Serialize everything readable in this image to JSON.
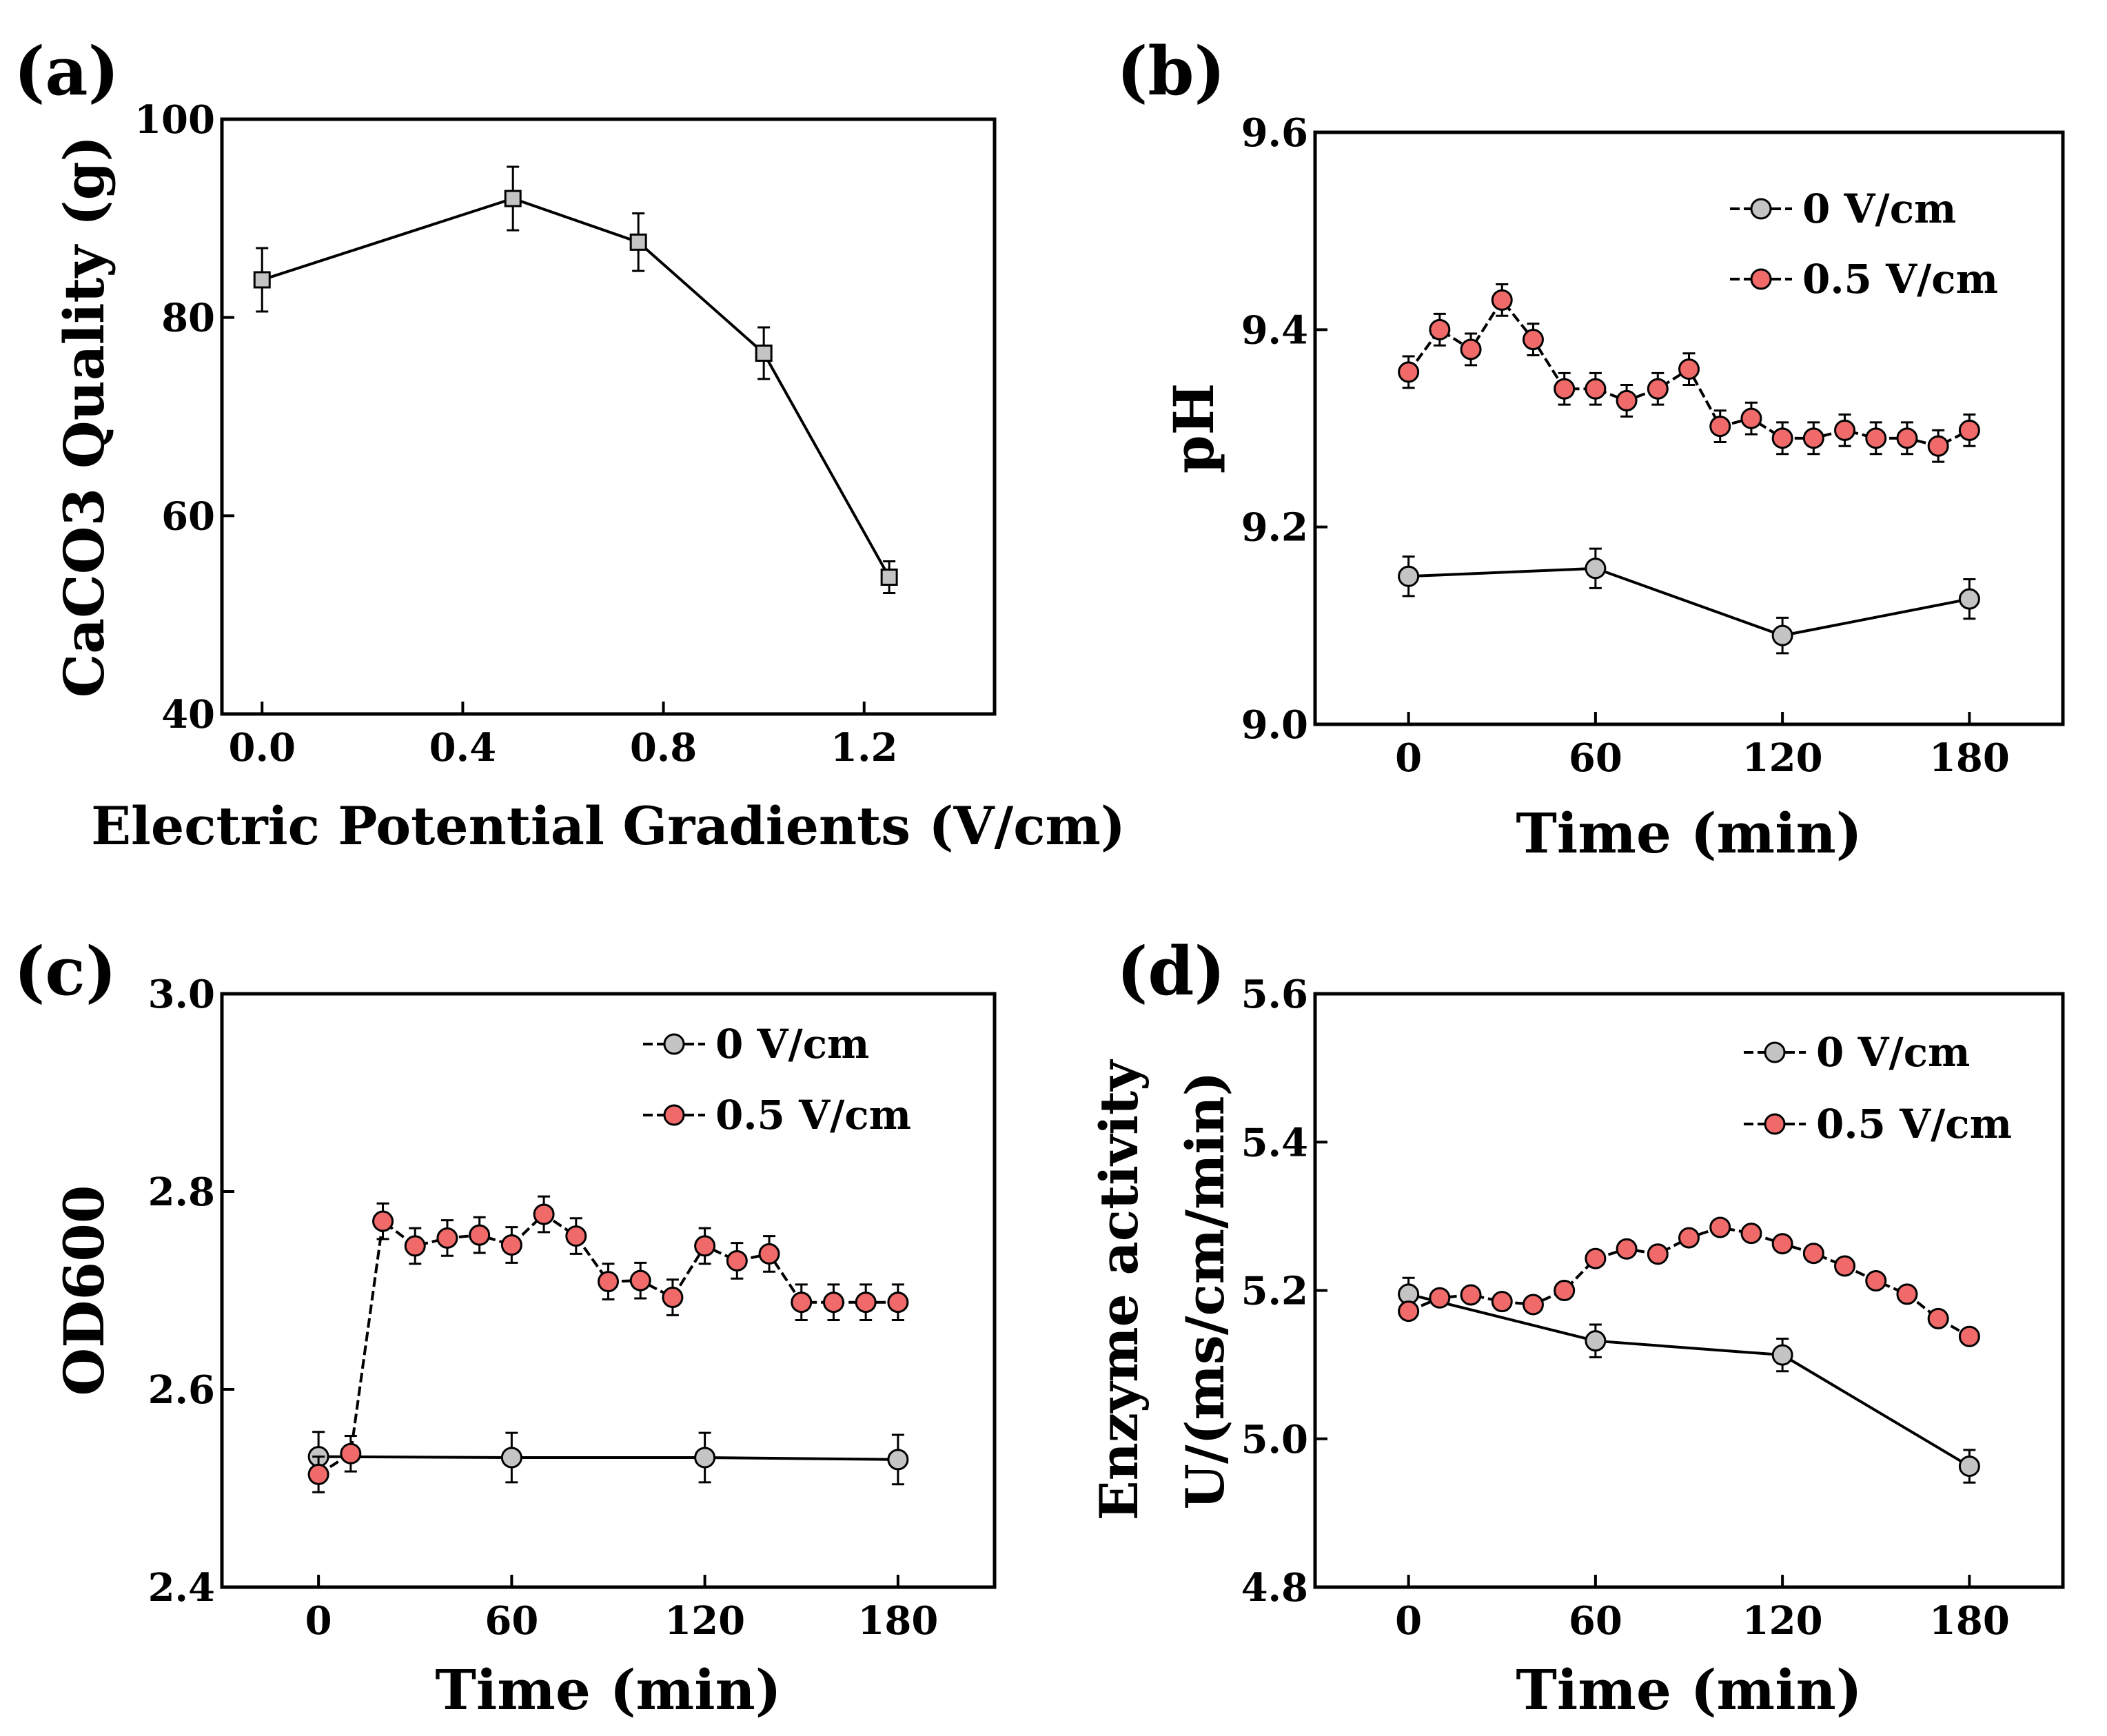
{
  "figure": {
    "colors": {
      "axis": "#000000",
      "line": "#000000",
      "marker_gray": "#c4c4c4",
      "marker_red": "#f06a6a"
    }
  },
  "chart_data": [
    {
      "id": "a",
      "panel_label": "(a)",
      "type": "line",
      "title": "",
      "xlabel": "Electric Potential Gradients (V/cm)",
      "ylabel": "CaCO3 Quality (g)",
      "xlim": [
        -0.08,
        1.46
      ],
      "ylim": [
        40,
        100
      ],
      "xticks": [
        0.0,
        0.4,
        0.8,
        1.2
      ],
      "xtick_labels": [
        "0.0",
        "0.4",
        "0.8",
        "1.2"
      ],
      "yticks": [
        40,
        60,
        80,
        100
      ],
      "ytick_labels": [
        "40",
        "60",
        "80",
        "100"
      ],
      "series": [
        {
          "name": "CaCO3 Quality",
          "marker": "square",
          "color": "#c4c4c4",
          "dashed": false,
          "x": [
            0.0,
            0.5,
            0.75,
            1.0,
            1.25
          ],
          "y": [
            83.8,
            92.0,
            87.6,
            76.4,
            53.8
          ],
          "err": [
            3.2,
            3.2,
            2.9,
            2.6,
            1.6
          ]
        }
      ]
    },
    {
      "id": "b",
      "panel_label": "(b)",
      "type": "line",
      "title": "",
      "xlabel": "Time (min)",
      "ylabel": "pH",
      "xlim": [
        -30,
        210
      ],
      "ylim": [
        9.0,
        9.6
      ],
      "xticks": [
        0,
        60,
        120,
        180
      ],
      "xtick_labels": [
        "0",
        "60",
        "120",
        "180"
      ],
      "yticks": [
        9.0,
        9.2,
        9.4,
        9.6
      ],
      "ytick_labels": [
        "9.0",
        "9.2",
        "9.4",
        "9.6"
      ],
      "legend": {
        "position": "top-right",
        "entries": [
          "0 V/cm",
          "0.5 V/cm"
        ]
      },
      "series": [
        {
          "name": "0 V/cm",
          "marker": "circle",
          "color": "#c4c4c4",
          "dashed": false,
          "x": [
            0,
            60,
            120,
            180
          ],
          "y": [
            9.15,
            9.158,
            9.09,
            9.127
          ],
          "err": [
            0.02,
            0.02,
            0.018,
            0.02
          ]
        },
        {
          "name": "0.5 V/cm",
          "marker": "circle",
          "color": "#f06a6a",
          "dashed": true,
          "x": [
            0,
            10,
            20,
            30,
            40,
            50,
            60,
            70,
            80,
            90,
            100,
            110,
            120,
            130,
            140,
            150,
            160,
            170,
            180
          ],
          "y": [
            9.357,
            9.4,
            9.38,
            9.43,
            9.39,
            9.34,
            9.34,
            9.328,
            9.34,
            9.36,
            9.302,
            9.31,
            9.29,
            9.29,
            9.298,
            9.29,
            9.29,
            9.282,
            9.298
          ],
          "err": [
            0.016,
            0.016,
            0.016,
            0.016,
            0.016,
            0.016,
            0.016,
            0.016,
            0.016,
            0.016,
            0.016,
            0.016,
            0.016,
            0.016,
            0.016,
            0.016,
            0.016,
            0.016,
            0.016
          ]
        }
      ]
    },
    {
      "id": "c",
      "panel_label": "(c)",
      "type": "line",
      "title": "",
      "xlabel": "Time (min)",
      "ylabel": "OD600",
      "xlim": [
        -30,
        210
      ],
      "ylim": [
        2.4,
        3.0
      ],
      "xticks": [
        0,
        60,
        120,
        180
      ],
      "xtick_labels": [
        "0",
        "60",
        "120",
        "180"
      ],
      "yticks": [
        2.4,
        2.6,
        2.8,
        3.0
      ],
      "ytick_labels": [
        "2.4",
        "2.6",
        "2.8",
        "3.0"
      ],
      "legend": {
        "position": "top-right",
        "entries": [
          "0 V/cm",
          "0.5 V/cm"
        ]
      },
      "series": [
        {
          "name": "0 V/cm",
          "marker": "circle",
          "color": "#c4c4c4",
          "dashed": false,
          "x": [
            0,
            60,
            120,
            180
          ],
          "y": [
            2.532,
            2.531,
            2.531,
            2.529
          ],
          "err": [
            0.025,
            0.025,
            0.025,
            0.025
          ]
        },
        {
          "name": "0.5 V/cm",
          "marker": "circle",
          "color": "#f06a6a",
          "dashed": true,
          "x": [
            0,
            10,
            20,
            30,
            40,
            50,
            60,
            70,
            80,
            90,
            100,
            110,
            120,
            130,
            140,
            150,
            160,
            170,
            180
          ],
          "y": [
            2.514,
            2.535,
            2.77,
            2.745,
            2.753,
            2.756,
            2.746,
            2.777,
            2.755,
            2.709,
            2.71,
            2.693,
            2.745,
            2.73,
            2.737,
            2.688,
            2.688,
            2.688,
            2.688
          ],
          "err": [
            0.018,
            0.018,
            0.018,
            0.018,
            0.018,
            0.018,
            0.018,
            0.018,
            0.018,
            0.018,
            0.018,
            0.018,
            0.018,
            0.018,
            0.018,
            0.018,
            0.018,
            0.018,
            0.018
          ]
        }
      ]
    },
    {
      "id": "d",
      "panel_label": "(d)",
      "type": "line",
      "title": "",
      "xlabel": "Time (min)",
      "ylabel_lines": [
        "Enzyme activity",
        "U/(ms/cm/min)"
      ],
      "xlim": [
        -30,
        210
      ],
      "ylim": [
        4.8,
        5.6
      ],
      "xticks": [
        0,
        60,
        120,
        180
      ],
      "xtick_labels": [
        "0",
        "60",
        "120",
        "180"
      ],
      "yticks": [
        4.8,
        5.0,
        5.2,
        5.4,
        5.6
      ],
      "ytick_labels": [
        "4.8",
        "5.0",
        "5.2",
        "5.4",
        "5.6"
      ],
      "legend": {
        "position": "top-right",
        "entries": [
          "0 V/cm",
          "0.5 V/cm"
        ]
      },
      "series": [
        {
          "name": "0 V/cm",
          "marker": "circle",
          "color": "#c4c4c4",
          "dashed": false,
          "x": [
            0,
            60,
            120,
            180
          ],
          "y": [
            5.195,
            5.132,
            5.113,
            4.963
          ],
          "err": [
            0.022,
            0.022,
            0.022,
            0.022
          ]
        },
        {
          "name": "0.5 V/cm",
          "marker": "circle",
          "color": "#f06a6a",
          "dashed": true,
          "x": [
            0,
            10,
            20,
            30,
            40,
            50,
            60,
            70,
            80,
            90,
            100,
            110,
            120,
            130,
            140,
            150,
            160,
            170,
            180
          ],
          "y": [
            5.172,
            5.19,
            5.194,
            5.185,
            5.181,
            5.2,
            5.243,
            5.256,
            5.249,
            5.271,
            5.285,
            5.277,
            5.263,
            5.25,
            5.233,
            5.213,
            5.195,
            5.162,
            5.138
          ],
          "err": [
            0,
            0,
            0,
            0,
            0,
            0,
            0,
            0,
            0,
            0,
            0,
            0,
            0,
            0,
            0,
            0,
            0,
            0,
            0
          ]
        }
      ]
    }
  ]
}
